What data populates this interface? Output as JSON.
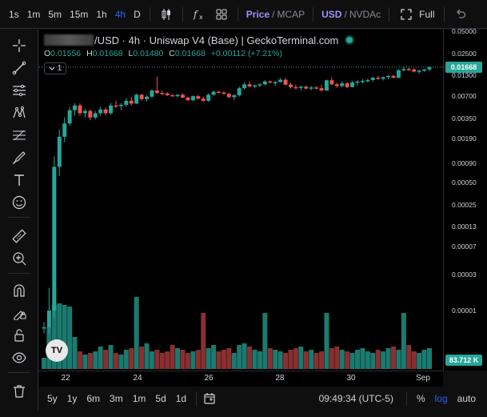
{
  "toolbar": {
    "timeframes": [
      "1s",
      "1m",
      "5m",
      "15m",
      "1h",
      "4h",
      "D"
    ],
    "active_timeframe": "4h",
    "price_toggle": {
      "on": "Price",
      "off": "MCAP"
    },
    "currency_toggle": {
      "on": "USD",
      "off": "NVDAc"
    },
    "fullscreen_label": "Full"
  },
  "legend": {
    "symbol_suffix": "/USD · 4h · Uniswap V4 (Base) | GeckoTerminal.com",
    "ohlc": {
      "o_label": "O",
      "o": "0.01556",
      "h_label": "H",
      "h": "0.01668",
      "l_label": "L",
      "l": "0.01480",
      "c_label": "C",
      "c": "0.01668",
      "change": "+0.00112 (+7.21%)"
    },
    "indicator_count": "1"
  },
  "price_scale": {
    "labels": [
      "0.05000",
      "0.02500",
      "0.01300",
      "0.00700",
      "0.00350",
      "0.00190",
      "0.00090",
      "0.00050",
      "0.00025",
      "0.00013",
      "0.00007",
      "0.00003",
      "0.00001"
    ],
    "current_price": "0.01668",
    "volume_badge": "83.712 K",
    "scale": "log"
  },
  "time_scale": {
    "labels": [
      "22",
      "24",
      "26",
      "28",
      "30",
      "Sep"
    ]
  },
  "bottom_bar": {
    "ranges": [
      "5y",
      "1y",
      "6m",
      "3m",
      "1m",
      "5d",
      "1d"
    ],
    "clock": "09:49:34 (UTC-5)",
    "percent_label": "%",
    "log_label": "log",
    "auto_label": "auto"
  },
  "colors": {
    "up": "#26a69a",
    "down": "#ef5350",
    "accent": "#2962ff",
    "toggle_active": "#9b93ff",
    "background": "#000000"
  },
  "watermark": "TV",
  "chart_data": {
    "type": "candlestick",
    "title": "",
    "y_scale": "log",
    "ylim": [
      7e-06,
      0.07
    ],
    "x_ticks": [
      "22",
      "24",
      "26",
      "28",
      "30",
      "Sep"
    ],
    "candles": [
      {
        "o": 6e-06,
        "h": 7e-06,
        "l": 5e-06,
        "c": 6e-06
      },
      {
        "o": 6e-06,
        "h": 2e-05,
        "l": 5e-06,
        "c": 1e-05
      },
      {
        "o": 1e-05,
        "h": 0.0011,
        "l": 8e-06,
        "c": 0.0008
      },
      {
        "o": 0.0008,
        "h": 0.0025,
        "l": 0.0006,
        "c": 0.002
      },
      {
        "o": 0.002,
        "h": 0.0036,
        "l": 0.0017,
        "c": 0.003
      },
      {
        "o": 0.003,
        "h": 0.005,
        "l": 0.0028,
        "c": 0.0045
      },
      {
        "o": 0.0045,
        "h": 0.0056,
        "l": 0.0038,
        "c": 0.0052
      },
      {
        "o": 0.0052,
        "h": 0.0055,
        "l": 0.0038,
        "c": 0.0041
      },
      {
        "o": 0.0041,
        "h": 0.0047,
        "l": 0.0036,
        "c": 0.0044
      },
      {
        "o": 0.0044,
        "h": 0.0046,
        "l": 0.0033,
        "c": 0.0036
      },
      {
        "o": 0.0036,
        "h": 0.0044,
        "l": 0.0034,
        "c": 0.0041
      },
      {
        "o": 0.0041,
        "h": 0.005,
        "l": 0.0038,
        "c": 0.0046
      },
      {
        "o": 0.0046,
        "h": 0.0049,
        "l": 0.0038,
        "c": 0.0041
      },
      {
        "o": 0.0041,
        "h": 0.0056,
        "l": 0.0039,
        "c": 0.0052
      },
      {
        "o": 0.0052,
        "h": 0.006,
        "l": 0.0048,
        "c": 0.0051
      },
      {
        "o": 0.0051,
        "h": 0.0056,
        "l": 0.0045,
        "c": 0.0053
      },
      {
        "o": 0.0053,
        "h": 0.0065,
        "l": 0.005,
        "c": 0.006
      },
      {
        "o": 0.006,
        "h": 0.0068,
        "l": 0.0052,
        "c": 0.0055
      },
      {
        "o": 0.0055,
        "h": 0.0075,
        "l": 0.0054,
        "c": 0.0072
      },
      {
        "o": 0.0072,
        "h": 0.0074,
        "l": 0.006,
        "c": 0.0063
      },
      {
        "o": 0.0063,
        "h": 0.0071,
        "l": 0.0059,
        "c": 0.0068
      },
      {
        "o": 0.0068,
        "h": 0.0085,
        "l": 0.0066,
        "c": 0.0082
      },
      {
        "o": 0.0082,
        "h": 0.0125,
        "l": 0.0074,
        "c": 0.0076
      },
      {
        "o": 0.0076,
        "h": 0.0082,
        "l": 0.0072,
        "c": 0.0075
      },
      {
        "o": 0.0075,
        "h": 0.0078,
        "l": 0.0069,
        "c": 0.0071
      },
      {
        "o": 0.0071,
        "h": 0.0074,
        "l": 0.0068,
        "c": 0.0069
      },
      {
        "o": 0.0069,
        "h": 0.0073,
        "l": 0.0066,
        "c": 0.0072
      },
      {
        "o": 0.0072,
        "h": 0.0075,
        "l": 0.0065,
        "c": 0.0066
      },
      {
        "o": 0.0066,
        "h": 0.0068,
        "l": 0.006,
        "c": 0.0061
      },
      {
        "o": 0.0061,
        "h": 0.0071,
        "l": 0.0059,
        "c": 0.0069
      },
      {
        "o": 0.0069,
        "h": 0.0072,
        "l": 0.0062,
        "c": 0.0064
      },
      {
        "o": 0.0064,
        "h": 0.0068,
        "l": 0.0058,
        "c": 0.006
      },
      {
        "o": 0.006,
        "h": 0.0075,
        "l": 0.0058,
        "c": 0.0072
      },
      {
        "o": 0.0072,
        "h": 0.0082,
        "l": 0.007,
        "c": 0.0079
      },
      {
        "o": 0.0079,
        "h": 0.0081,
        "l": 0.0075,
        "c": 0.0077
      },
      {
        "o": 0.0077,
        "h": 0.008,
        "l": 0.0072,
        "c": 0.0074
      },
      {
        "o": 0.0074,
        "h": 0.0077,
        "l": 0.0065,
        "c": 0.0067
      },
      {
        "o": 0.0067,
        "h": 0.0073,
        "l": 0.0061,
        "c": 0.0071
      },
      {
        "o": 0.0071,
        "h": 0.0092,
        "l": 0.0068,
        "c": 0.0088
      },
      {
        "o": 0.0088,
        "h": 0.0105,
        "l": 0.0084,
        "c": 0.0099
      },
      {
        "o": 0.0099,
        "h": 0.0108,
        "l": 0.009,
        "c": 0.0093
      },
      {
        "o": 0.0093,
        "h": 0.0098,
        "l": 0.0088,
        "c": 0.0096
      },
      {
        "o": 0.0096,
        "h": 0.0102,
        "l": 0.0091,
        "c": 0.0099
      },
      {
        "o": 0.0099,
        "h": 0.0112,
        "l": 0.0096,
        "c": 0.0108
      },
      {
        "o": 0.0108,
        "h": 0.0112,
        "l": 0.0102,
        "c": 0.0105
      },
      {
        "o": 0.0105,
        "h": 0.011,
        "l": 0.0095,
        "c": 0.0106
      },
      {
        "o": 0.0106,
        "h": 0.012,
        "l": 0.0104,
        "c": 0.0114
      },
      {
        "o": 0.0114,
        "h": 0.012,
        "l": 0.0096,
        "c": 0.0098
      },
      {
        "o": 0.0098,
        "h": 0.0104,
        "l": 0.0087,
        "c": 0.0091
      },
      {
        "o": 0.0091,
        "h": 0.0097,
        "l": 0.0085,
        "c": 0.0089
      },
      {
        "o": 0.0089,
        "h": 0.0095,
        "l": 0.0082,
        "c": 0.0092
      },
      {
        "o": 0.0092,
        "h": 0.0096,
        "l": 0.0085,
        "c": 0.0087
      },
      {
        "o": 0.0087,
        "h": 0.0094,
        "l": 0.0082,
        "c": 0.009
      },
      {
        "o": 0.009,
        "h": 0.0094,
        "l": 0.0085,
        "c": 0.0088
      },
      {
        "o": 0.0088,
        "h": 0.0098,
        "l": 0.0079,
        "c": 0.0082
      },
      {
        "o": 0.0082,
        "h": 0.0114,
        "l": 0.0081,
        "c": 0.0112
      },
      {
        "o": 0.0112,
        "h": 0.0122,
        "l": 0.0096,
        "c": 0.0099
      },
      {
        "o": 0.0099,
        "h": 0.0104,
        "l": 0.0089,
        "c": 0.0094
      },
      {
        "o": 0.0094,
        "h": 0.0108,
        "l": 0.009,
        "c": 0.0102
      },
      {
        "o": 0.0102,
        "h": 0.0106,
        "l": 0.0088,
        "c": 0.0091
      },
      {
        "o": 0.0091,
        "h": 0.011,
        "l": 0.009,
        "c": 0.0105
      },
      {
        "o": 0.0105,
        "h": 0.0112,
        "l": 0.0096,
        "c": 0.0108
      },
      {
        "o": 0.0108,
        "h": 0.0116,
        "l": 0.0102,
        "c": 0.011
      },
      {
        "o": 0.011,
        "h": 0.0118,
        "l": 0.0104,
        "c": 0.0113
      },
      {
        "o": 0.0113,
        "h": 0.0125,
        "l": 0.0108,
        "c": 0.0121
      },
      {
        "o": 0.0121,
        "h": 0.0128,
        "l": 0.0114,
        "c": 0.0117
      },
      {
        "o": 0.0117,
        "h": 0.0126,
        "l": 0.0111,
        "c": 0.0123
      },
      {
        "o": 0.0123,
        "h": 0.0132,
        "l": 0.0116,
        "c": 0.0128
      },
      {
        "o": 0.0128,
        "h": 0.0133,
        "l": 0.0119,
        "c": 0.0121
      },
      {
        "o": 0.0121,
        "h": 0.0158,
        "l": 0.0119,
        "c": 0.0152
      },
      {
        "o": 0.0152,
        "h": 0.017,
        "l": 0.0147,
        "c": 0.0158
      },
      {
        "o": 0.0158,
        "h": 0.0165,
        "l": 0.0149,
        "c": 0.0156
      },
      {
        "o": 0.0156,
        "h": 0.0161,
        "l": 0.0142,
        "c": 0.0146
      },
      {
        "o": 0.0146,
        "h": 0.0154,
        "l": 0.0138,
        "c": 0.015
      },
      {
        "o": 0.015,
        "h": 0.0158,
        "l": 0.0145,
        "c": 0.0156
      },
      {
        "o": 0.0156,
        "h": 0.0168,
        "l": 0.0148,
        "c": 0.0168
      }
    ],
    "volume_badge": "83.712 K"
  }
}
